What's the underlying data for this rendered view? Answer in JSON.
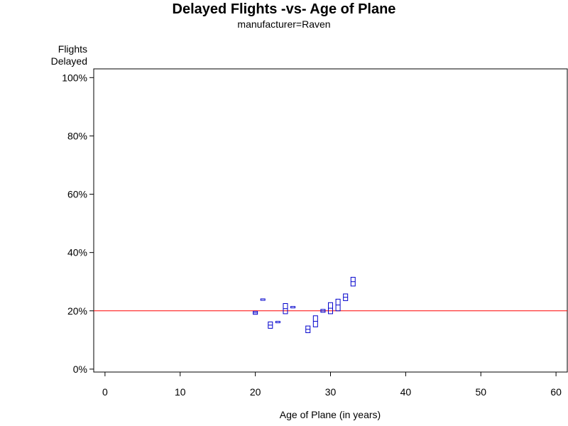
{
  "chart_data": {
    "type": "scatter",
    "title": "Delayed Flights -vs- Age of Plane",
    "subtitle": "manufacturer=Raven",
    "ylabel_line1": "Flights",
    "ylabel_line2": "Delayed",
    "xlabel": "Age of Plane (in years)",
    "xlim": [
      -1.5,
      61.5
    ],
    "ylim": [
      -1,
      103
    ],
    "x_ticks": [
      0,
      10,
      20,
      30,
      40,
      50,
      60
    ],
    "x_tick_labels": [
      "0",
      "10",
      "20",
      "30",
      "40",
      "50",
      "60"
    ],
    "y_ticks": [
      0,
      20,
      40,
      60,
      80,
      100
    ],
    "y_tick_labels": [
      "0%",
      "20%",
      "40%",
      "60%",
      "80%",
      "100%"
    ],
    "reference_line": {
      "y": 20,
      "color": "#ff0000"
    },
    "marker_color": "#0000cc",
    "points": [
      {
        "x": 20,
        "low": 18.8,
        "high": 19.8
      },
      {
        "x": 21,
        "low": 23.6,
        "high": 24.1
      },
      {
        "x": 22,
        "low": 14.0,
        "high": 16.2
      },
      {
        "x": 23,
        "low": 15.9,
        "high": 16.4
      },
      {
        "x": 24,
        "low": 19.0,
        "high": 22.5
      },
      {
        "x": 25,
        "low": 21.0,
        "high": 21.5
      },
      {
        "x": 27,
        "low": 12.5,
        "high": 14.8
      },
      {
        "x": 28,
        "low": 14.5,
        "high": 18.3
      },
      {
        "x": 29,
        "low": 19.5,
        "high": 20.5
      },
      {
        "x": 30,
        "low": 19.0,
        "high": 22.8
      },
      {
        "x": 31,
        "low": 20.0,
        "high": 24.0
      },
      {
        "x": 32,
        "low": 23.5,
        "high": 25.8
      },
      {
        "x": 33,
        "low": 28.5,
        "high": 31.5
      }
    ]
  }
}
